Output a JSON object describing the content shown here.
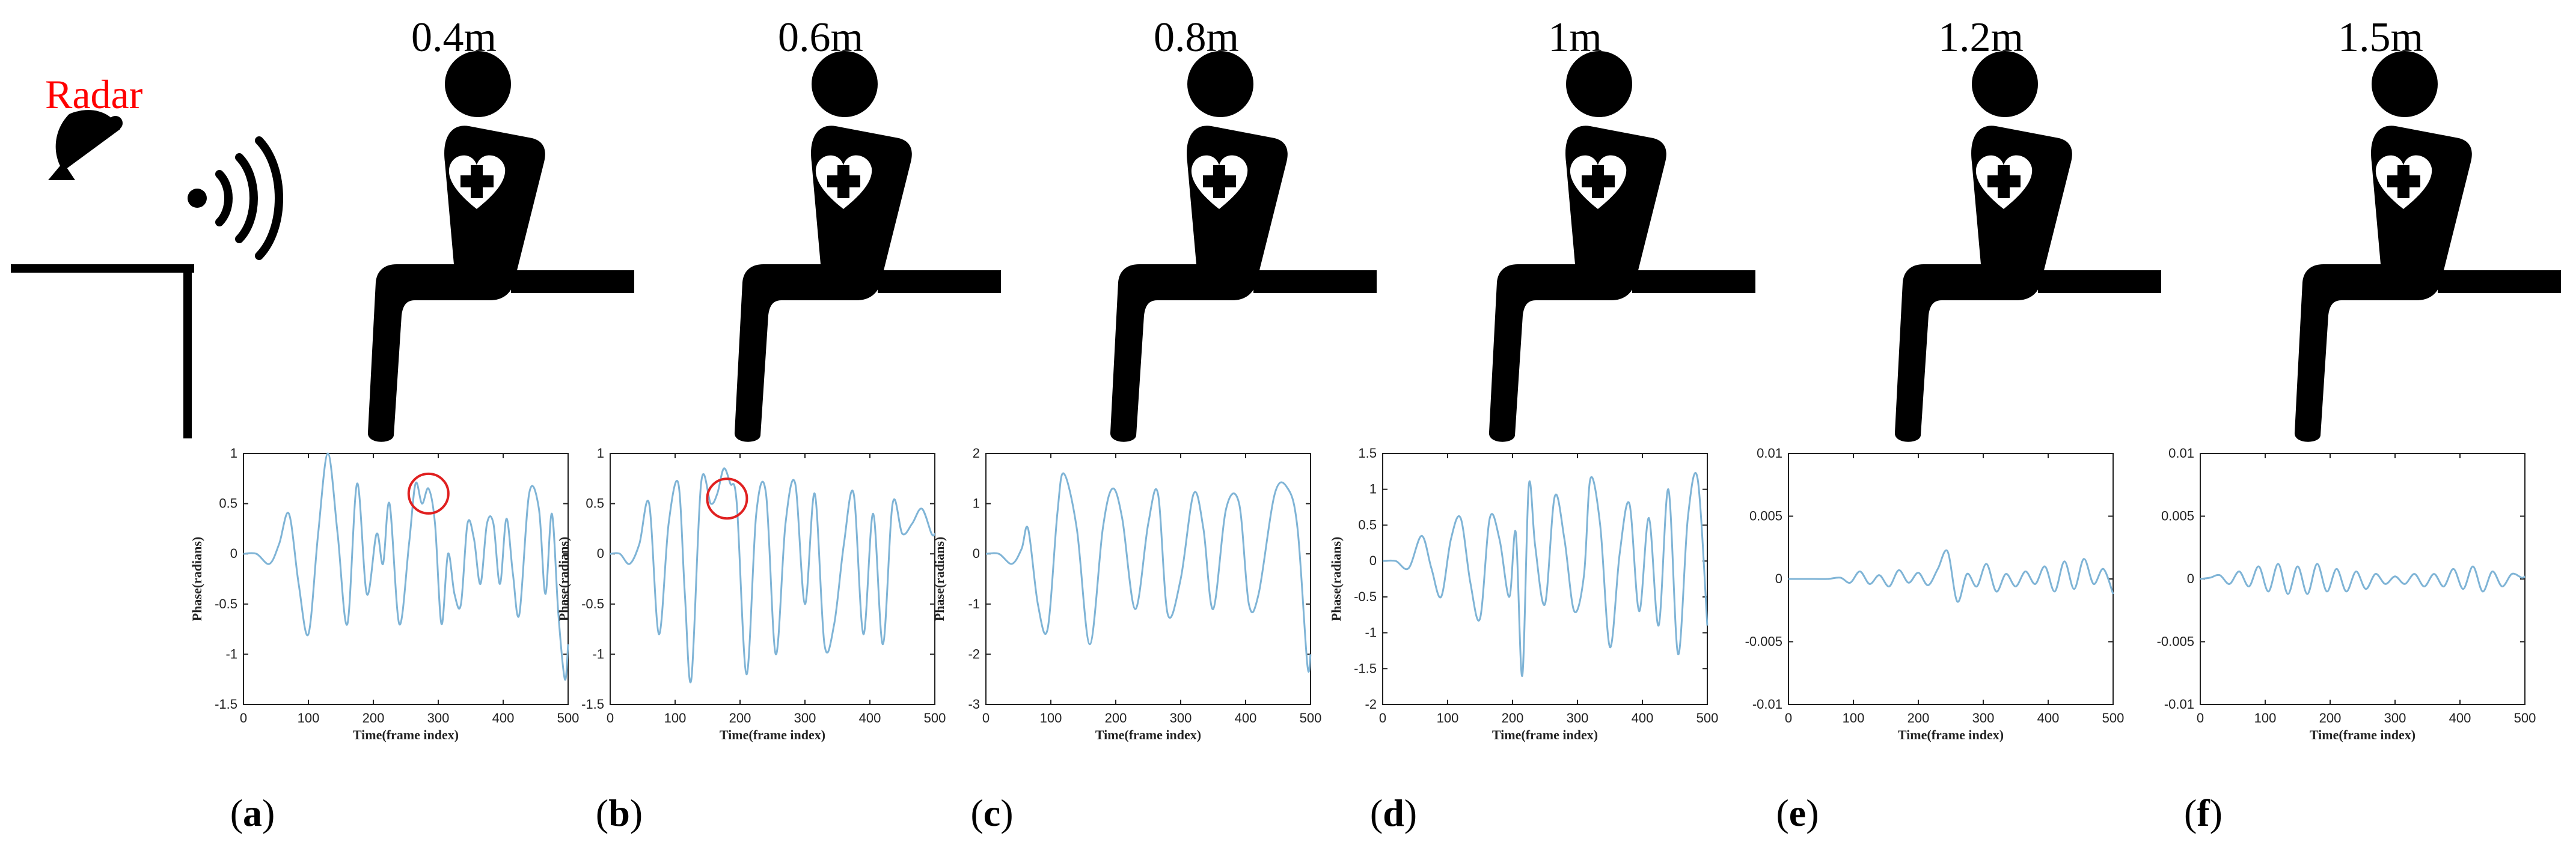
{
  "radar": {
    "label": "Radar",
    "color": "#ff0000"
  },
  "colors": {
    "trace": "#7fb4d6",
    "marker": "#e02020",
    "icon": "#000000"
  },
  "icons": {
    "person": "seated-person-heart-icon",
    "radar": "radar-dish-icon",
    "signal": "signal-waves-icon"
  },
  "panels": [
    {
      "distance": "0.4m",
      "caption": [
        "(",
        "a",
        ")"
      ]
    },
    {
      "distance": "0.6m",
      "caption": [
        "(",
        "b",
        ")"
      ]
    },
    {
      "distance": "0.8m",
      "caption": [
        "(",
        "c",
        ")"
      ]
    },
    {
      "distance": "1m",
      "caption": [
        "(",
        "d",
        ")"
      ]
    },
    {
      "distance": "1.2m",
      "caption": [
        "(",
        "e",
        ")"
      ]
    },
    {
      "distance": "1.5m",
      "caption": [
        "(",
        "f",
        ")"
      ]
    }
  ],
  "chart_data": [
    {
      "type": "line",
      "xlabel": "Time(frame index)",
      "ylabel": "Phase(radians)",
      "xlim": [
        0,
        500
      ],
      "ylim": [
        -1.5,
        1
      ],
      "xticks": [
        "0",
        "100",
        "200",
        "300",
        "400",
        "500"
      ],
      "yticks": [
        "-1.5",
        "-1",
        "-0.5",
        "0",
        "0.5",
        "1"
      ],
      "annotation": {
        "type": "circle",
        "x": 285,
        "y": 0.6
      },
      "x": [
        0,
        20,
        40,
        55,
        70,
        85,
        100,
        115,
        130,
        145,
        160,
        175,
        190,
        205,
        215,
        225,
        240,
        255,
        265,
        275,
        285,
        295,
        305,
        315,
        325,
        335,
        345,
        355,
        365,
        375,
        385,
        395,
        405,
        415,
        425,
        440,
        455,
        465,
        475,
        485,
        495,
        500
      ],
      "y": [
        0,
        0,
        -0.1,
        0.1,
        0.4,
        -0.3,
        -0.8,
        0.2,
        1.0,
        0.2,
        -0.7,
        0.7,
        -0.4,
        0.2,
        -0.1,
        0.5,
        -0.7,
        0.1,
        0.7,
        0.5,
        0.65,
        0.3,
        -0.7,
        0.0,
        -0.4,
        -0.5,
        0.3,
        0.15,
        -0.3,
        0.3,
        0.3,
        -0.3,
        0.35,
        -0.2,
        -0.6,
        0.6,
        0.45,
        -0.4,
        0.4,
        -0.6,
        -1.25,
        -0.9
      ]
    },
    {
      "type": "line",
      "xlabel": "Time(frame index)",
      "ylabel": "Phase(radians)",
      "xlim": [
        0,
        500
      ],
      "ylim": [
        -1.5,
        1
      ],
      "xticks": [
        "0",
        "100",
        "200",
        "300",
        "400",
        "500"
      ],
      "yticks": [
        "-1.5",
        "-1",
        "-0.5",
        "0",
        "0.5",
        "1"
      ],
      "annotation": {
        "type": "circle",
        "x": 180,
        "y": 0.55
      },
      "x": [
        0,
        15,
        30,
        45,
        60,
        75,
        90,
        105,
        115,
        125,
        140,
        155,
        165,
        175,
        185,
        195,
        210,
        225,
        240,
        255,
        270,
        285,
        300,
        315,
        330,
        345,
        360,
        375,
        390,
        405,
        420,
        435,
        450,
        465,
        480,
        495,
        500
      ],
      "y": [
        0,
        0,
        -0.1,
        0.1,
        0.5,
        -0.8,
        0.3,
        0.7,
        -0.4,
        -1.25,
        0.7,
        0.5,
        0.6,
        0.85,
        0.7,
        0.5,
        -1.2,
        0.4,
        0.6,
        -1.0,
        0.3,
        0.7,
        -0.5,
        0.6,
        -0.9,
        -0.7,
        0.1,
        0.6,
        -0.8,
        0.4,
        -0.9,
        0.5,
        0.2,
        0.3,
        0.45,
        0.2,
        0.2
      ]
    },
    {
      "type": "line",
      "xlabel": "Time(frame index)",
      "ylabel": "Phase(radians)",
      "xlim": [
        0,
        500
      ],
      "ylim": [
        -3,
        2
      ],
      "xticks": [
        "0",
        "100",
        "200",
        "300",
        "400",
        "500"
      ],
      "yticks": [
        "-3",
        "-2",
        "-1",
        "0",
        "1",
        "2"
      ],
      "x": [
        0,
        20,
        40,
        55,
        65,
        80,
        95,
        110,
        120,
        140,
        160,
        180,
        195,
        210,
        230,
        250,
        265,
        280,
        300,
        320,
        335,
        350,
        370,
        390,
        405,
        420,
        445,
        465,
        480,
        495,
        500
      ],
      "y": [
        0,
        0,
        -0.2,
        0.1,
        0.5,
        -1.0,
        -1.5,
        0.8,
        1.6,
        0.5,
        -1.8,
        0.5,
        1.3,
        0.7,
        -1.1,
        0.6,
        1.2,
        -1.2,
        -0.5,
        1.2,
        0.5,
        -1.1,
        0.9,
        1.0,
        -1.0,
        -0.8,
        1.2,
        1.3,
        0.5,
        -2.2,
        -2.0
      ]
    },
    {
      "type": "line",
      "xlabel": "Time(frame index)",
      "ylabel": "Phase(radians)",
      "xlim": [
        0,
        500
      ],
      "ylim": [
        -2,
        1.5
      ],
      "xticks": [
        "0",
        "100",
        "200",
        "300",
        "400",
        "500"
      ],
      "yticks": [
        "-2",
        "-1.5",
        "-1",
        "-0.5",
        "0",
        "0.5",
        "1",
        "1.5"
      ],
      "x": [
        0,
        20,
        40,
        60,
        75,
        90,
        105,
        120,
        135,
        150,
        165,
        180,
        195,
        205,
        215,
        225,
        235,
        250,
        265,
        280,
        295,
        310,
        320,
        335,
        350,
        365,
        380,
        395,
        410,
        425,
        440,
        455,
        470,
        485,
        500
      ],
      "y": [
        0,
        0,
        -0.1,
        0.35,
        -0.1,
        -0.5,
        0.3,
        0.6,
        -0.3,
        -0.8,
        0.6,
        0.3,
        -0.5,
        0.4,
        -1.6,
        1.05,
        0.2,
        -0.6,
        0.9,
        0.3,
        -0.7,
        -0.2,
        1.15,
        0.5,
        -1.2,
        0.1,
        0.8,
        -0.7,
        0.6,
        -0.9,
        1.0,
        -1.3,
        0.6,
        1.15,
        -0.9
      ]
    },
    {
      "type": "line",
      "xlabel": "Time(frame index)",
      "ylabel": "",
      "xlim": [
        0,
        500
      ],
      "ylim": [
        -0.01,
        0.01
      ],
      "xticks": [
        "0",
        "100",
        "200",
        "300",
        "400",
        "500"
      ],
      "yticks": [
        "-0.01",
        "-0.005",
        "0",
        "0.005",
        "0.01"
      ],
      "x": [
        0,
        20,
        40,
        60,
        80,
        95,
        110,
        125,
        140,
        155,
        170,
        185,
        200,
        215,
        230,
        245,
        260,
        275,
        290,
        305,
        320,
        335,
        350,
        365,
        380,
        395,
        410,
        425,
        440,
        455,
        470,
        485,
        500
      ],
      "y": [
        0,
        0,
        0,
        0,
        0.0001,
        -0.0003,
        0.0006,
        -0.0004,
        0.0003,
        -0.0006,
        0.0007,
        -0.0003,
        0.0005,
        -0.0005,
        0.0008,
        0.0022,
        -0.0018,
        0.0004,
        -0.0006,
        0.0012,
        -0.001,
        0.0004,
        -0.0006,
        0.0006,
        -0.0004,
        0.001,
        -0.001,
        0.0014,
        -0.0008,
        0.0016,
        -0.0004,
        0.0008,
        -0.0012
      ]
    },
    {
      "type": "line",
      "xlabel": "Time(frame index)",
      "ylabel": "",
      "xlim": [
        0,
        500
      ],
      "ylim": [
        -0.01,
        0.01
      ],
      "xticks": [
        "0",
        "100",
        "200",
        "300",
        "400",
        "500"
      ],
      "yticks": [
        "-0.01",
        "-0.005",
        "0",
        "0.005",
        "0.01"
      ],
      "x": [
        0,
        15,
        30,
        45,
        60,
        75,
        90,
        105,
        120,
        135,
        150,
        165,
        180,
        195,
        210,
        225,
        240,
        255,
        270,
        285,
        300,
        315,
        330,
        345,
        360,
        375,
        390,
        405,
        420,
        435,
        450,
        465,
        480,
        495,
        500
      ],
      "y": [
        0,
        0.0001,
        0.0003,
        -0.0004,
        0.0006,
        -0.0006,
        0.001,
        -0.001,
        0.0012,
        -0.0012,
        0.001,
        -0.0012,
        0.0012,
        -0.001,
        0.0008,
        -0.001,
        0.0006,
        -0.0008,
        0.0004,
        -0.0004,
        0.0002,
        -0.0004,
        0.0004,
        -0.0006,
        0.0004,
        -0.0006,
        0.0008,
        -0.0008,
        0.001,
        -0.001,
        0.0006,
        -0.0006,
        0.0004,
        0.0001,
        0.0002
      ]
    }
  ]
}
